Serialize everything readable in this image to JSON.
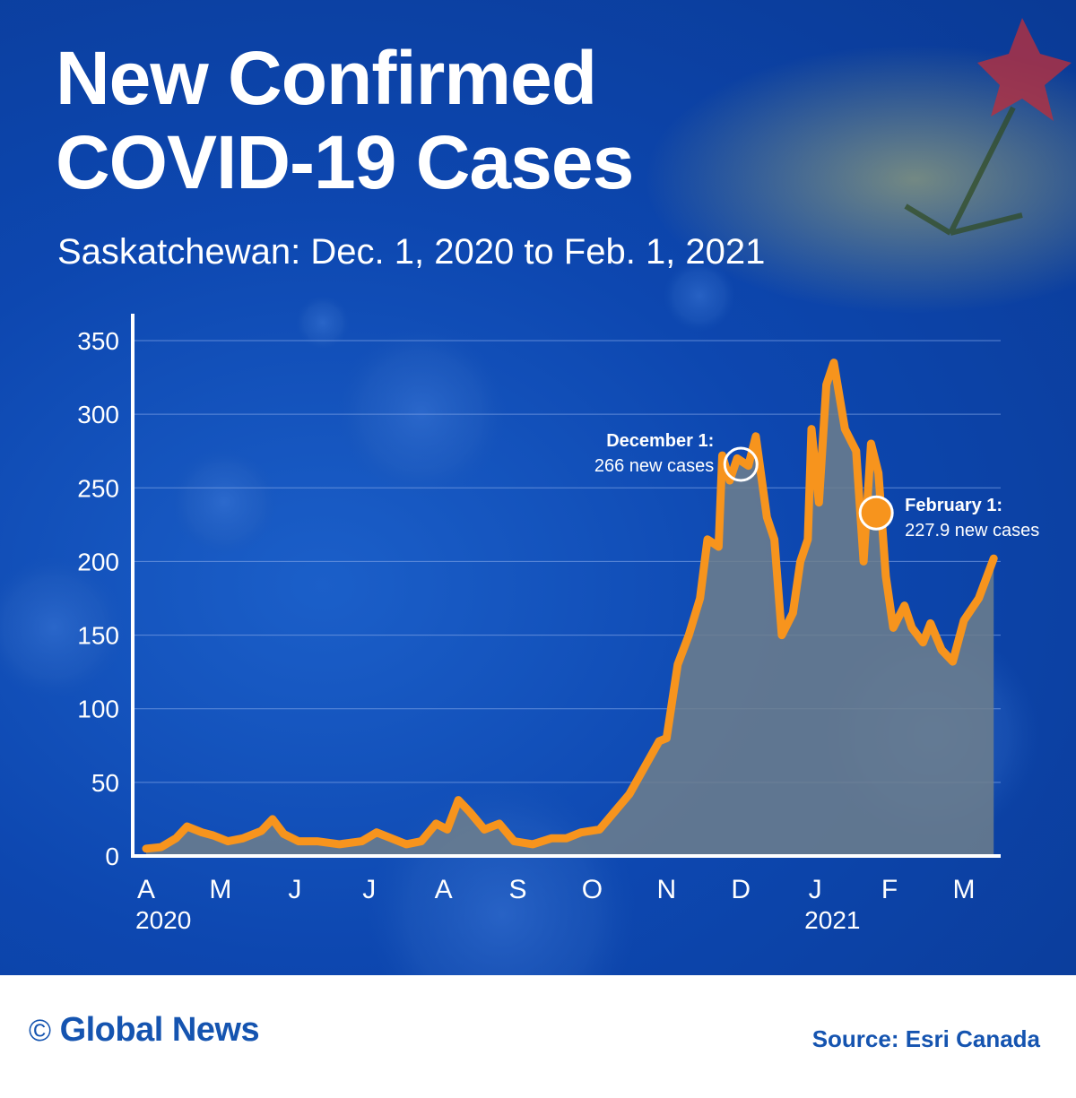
{
  "title": {
    "line1": "New Confirmed",
    "line2": "COVID-19 Cases"
  },
  "subtitle": "Saskatchewan: Dec. 1, 2020 to Feb. 1, 2021",
  "footer": {
    "copyright_symbol": "©",
    "brand": "Global News",
    "source": "Source: Esri Canada"
  },
  "colors": {
    "background": "#0d47b0",
    "line": "#f7941d",
    "area": "#6f7f8c",
    "grid": "#7fa3e6",
    "text": "#ffffff",
    "footer_text": "#1554b0"
  },
  "chart_data": {
    "type": "area",
    "ylim": [
      0,
      350
    ],
    "yticks": [
      0,
      50,
      100,
      150,
      200,
      250,
      300,
      350
    ],
    "x_range": [
      0,
      11.5
    ],
    "month_ticks": [
      {
        "label": "A",
        "pos": 0
      },
      {
        "label": "M",
        "pos": 1
      },
      {
        "label": "J",
        "pos": 2
      },
      {
        "label": "J",
        "pos": 3
      },
      {
        "label": "A",
        "pos": 4
      },
      {
        "label": "S",
        "pos": 5
      },
      {
        "label": "O",
        "pos": 6
      },
      {
        "label": "N",
        "pos": 7
      },
      {
        "label": "D",
        "pos": 8
      },
      {
        "label": "J",
        "pos": 9
      },
      {
        "label": "F",
        "pos": 10
      },
      {
        "label": "M",
        "pos": 11
      }
    ],
    "year_labels": [
      {
        "label": "2020",
        "pos": 0
      },
      {
        "label": "2021",
        "pos": 9
      }
    ],
    "series": [
      {
        "values": [
          [
            0,
            5
          ],
          [
            0.2,
            6
          ],
          [
            0.4,
            12
          ],
          [
            0.55,
            20
          ],
          [
            0.75,
            16
          ],
          [
            0.9,
            14
          ],
          [
            1.1,
            10
          ],
          [
            1.3,
            12
          ],
          [
            1.55,
            17
          ],
          [
            1.7,
            25
          ],
          [
            1.85,
            15
          ],
          [
            2.05,
            10
          ],
          [
            2.3,
            10
          ],
          [
            2.6,
            8
          ],
          [
            2.9,
            10
          ],
          [
            3.1,
            16
          ],
          [
            3.3,
            12
          ],
          [
            3.5,
            8
          ],
          [
            3.7,
            10
          ],
          [
            3.9,
            22
          ],
          [
            4.05,
            18
          ],
          [
            4.2,
            38
          ],
          [
            4.35,
            30
          ],
          [
            4.55,
            18
          ],
          [
            4.75,
            22
          ],
          [
            4.95,
            10
          ],
          [
            5.2,
            8
          ],
          [
            5.45,
            12
          ],
          [
            5.65,
            12
          ],
          [
            5.85,
            16
          ],
          [
            6.1,
            18
          ],
          [
            6.3,
            30
          ],
          [
            6.5,
            42
          ],
          [
            6.7,
            60
          ],
          [
            6.9,
            78
          ],
          [
            7.0,
            80
          ],
          [
            7.15,
            130
          ],
          [
            7.3,
            150
          ],
          [
            7.45,
            175
          ],
          [
            7.55,
            215
          ],
          [
            7.7,
            210
          ],
          [
            7.75,
            272
          ],
          [
            7.85,
            255
          ],
          [
            7.95,
            270
          ],
          [
            8.1,
            265
          ],
          [
            8.2,
            285
          ],
          [
            8.35,
            230
          ],
          [
            8.45,
            215
          ],
          [
            8.55,
            150
          ],
          [
            8.7,
            165
          ],
          [
            8.8,
            200
          ],
          [
            8.9,
            215
          ],
          [
            8.95,
            290
          ],
          [
            9.05,
            240
          ],
          [
            9.15,
            320
          ],
          [
            9.25,
            335
          ],
          [
            9.4,
            290
          ],
          [
            9.5,
            280
          ],
          [
            9.55,
            275
          ],
          [
            9.65,
            200
          ],
          [
            9.75,
            280
          ],
          [
            9.85,
            260
          ],
          [
            9.95,
            190
          ],
          [
            10.05,
            155
          ],
          [
            10.2,
            170
          ],
          [
            10.3,
            155
          ],
          [
            10.45,
            145
          ],
          [
            10.55,
            158
          ],
          [
            10.7,
            140
          ],
          [
            10.85,
            132
          ],
          [
            11.0,
            160
          ],
          [
            11.2,
            175
          ],
          [
            11.4,
            202
          ]
        ]
      }
    ],
    "annotations": [
      {
        "title": "December 1:",
        "text": "266 new cases",
        "x": 8.0,
        "y": 266,
        "marker": "hollow"
      },
      {
        "title": "February 1:",
        "text": "227.9 new cases",
        "x": 9.82,
        "y": 233,
        "marker": "filled"
      }
    ]
  }
}
